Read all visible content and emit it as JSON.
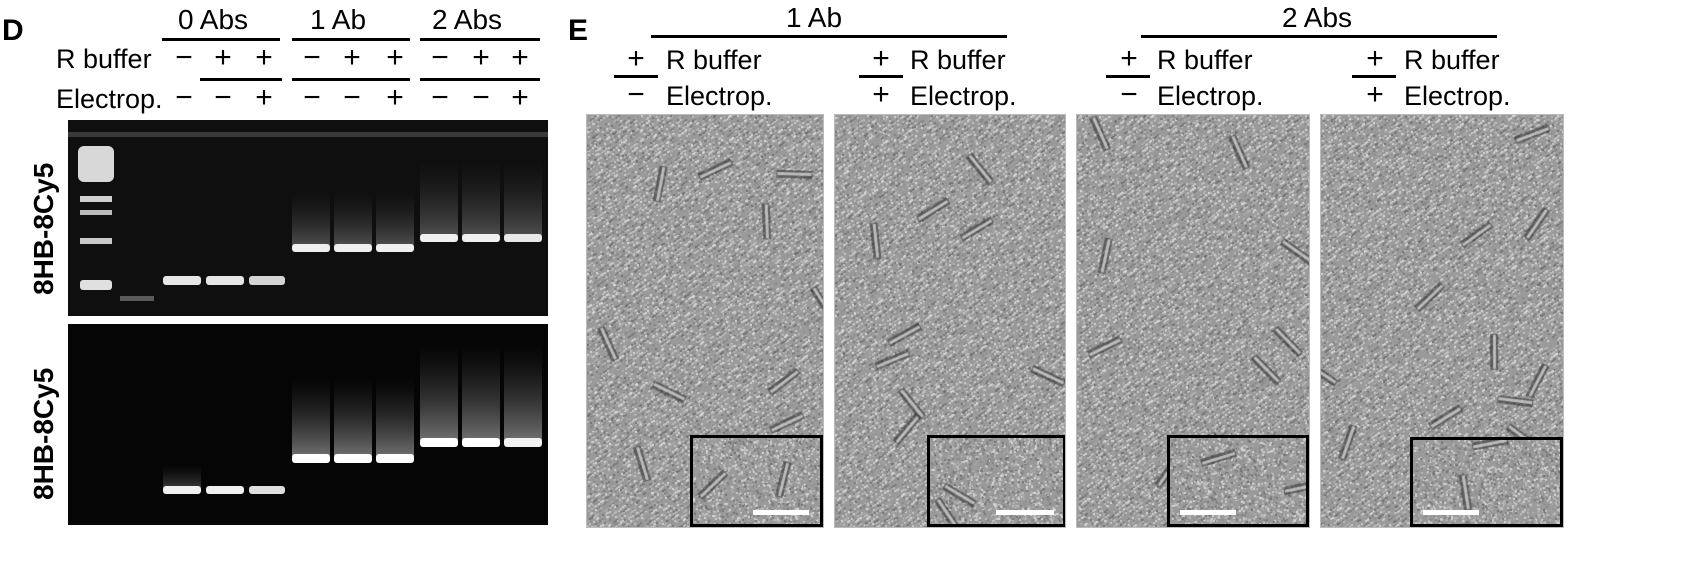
{
  "panel_d": {
    "letter": "D",
    "groups": [
      "0 Abs",
      "1 Ab",
      "2 Abs"
    ],
    "row_labels": {
      "r_buffer": "R buffer",
      "electrop": "Electrop."
    },
    "r_buffer_signs": [
      "−",
      "+",
      "+",
      "−",
      "+",
      "+",
      "−",
      "+",
      "+"
    ],
    "electrop_signs": [
      "−",
      "−",
      "+",
      "−",
      "−",
      "+",
      "−",
      "−",
      "+"
    ],
    "gel_top_label": "8HB-8Cy5",
    "gel_bottom_label": "8HB-8Cy5"
  },
  "panel_e": {
    "letter": "E",
    "groups": [
      "1 Ab",
      "2 Abs"
    ],
    "conditions": [
      {
        "r_buffer_sign": "+",
        "r_buffer_label": "R buffer",
        "electrop_sign": "−",
        "electrop_label": "Electrop."
      },
      {
        "r_buffer_sign": "+",
        "r_buffer_label": "R buffer",
        "electrop_sign": "+",
        "electrop_label": "Electrop."
      },
      {
        "r_buffer_sign": "+",
        "r_buffer_label": "R buffer",
        "electrop_sign": "−",
        "electrop_label": "Electrop."
      },
      {
        "r_buffer_sign": "+",
        "r_buffer_label": "R buffer",
        "electrop_sign": "+",
        "electrop_label": "Electrop."
      }
    ]
  }
}
